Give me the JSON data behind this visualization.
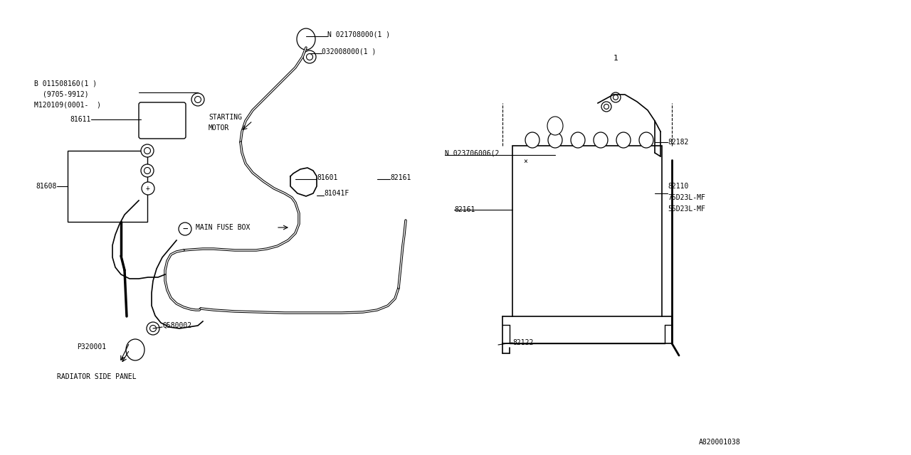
{
  "bg_color": "#FFFFFF",
  "line_color": "#000000",
  "font_size": 7.0,
  "font_family": "monospace",
  "labels": {
    "B_part": "B 011508160(1 )",
    "B_part2": "(9705-9912)",
    "B_part3": "M120109(0001-  )",
    "N1": "N 021708000(1 )",
    "N1b": "032008000(1 )",
    "N2": "N 023706006(2 ",
    "p81601": "81601",
    "p81041F": "81041F",
    "p81611": "81611",
    "p81608": "81608",
    "p82161a": "82161",
    "p82161b": "82161",
    "p82182": "82182",
    "p82110": "82110",
    "p82110a": "75D23L-MF",
    "p82110b": "55D23L-MF",
    "p82122": "82122",
    "pQ580002": "Q580002",
    "pP320001": "P320001",
    "STARTING_MOTOR1": "STARTING",
    "STARTING_MOTOR2": "MOTOR",
    "MAIN_FUSE_BOX": "MAIN FUSE BOX",
    "RADIATOR_SIDE_PANEL": "RADIATOR SIDE PANEL",
    "diagram_id": "A820001038",
    "num1": "1"
  }
}
